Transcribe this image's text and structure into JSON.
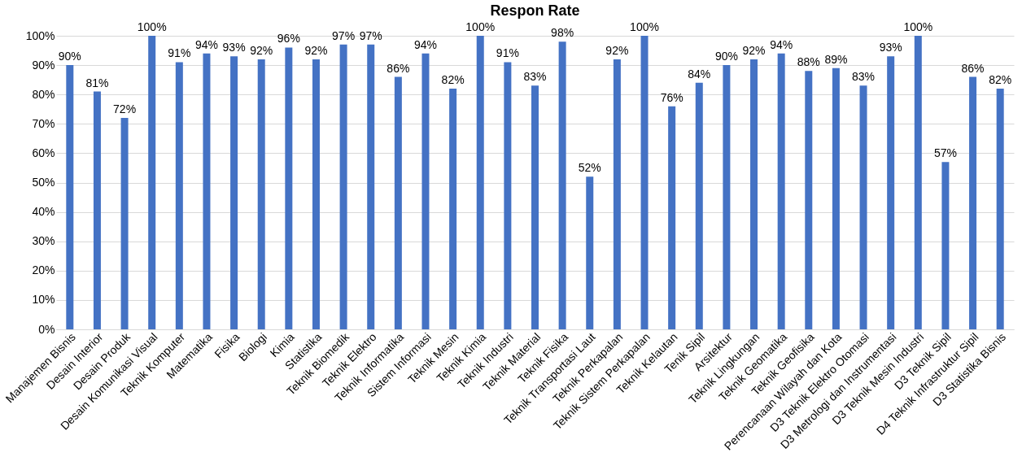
{
  "chart_data": {
    "type": "bar",
    "title": "Respon Rate",
    "categories": [
      "Manajemen Bisnis",
      "Desain Interior",
      "Desain Produk",
      "Desain Komunikasi Visual",
      "Teknik Komputer",
      "Matematika",
      "Fisika",
      "Biologi",
      "Kimia",
      "Statistika",
      "Teknik Biomedik",
      "Teknik Elektro",
      "Teknik Informatika",
      "Sistem Informasi",
      "Teknik Mesin",
      "Teknik Kimia",
      "Teknik Industri",
      "Teknik Material",
      "Teknik Fisika",
      "Teknik Transportasi Laut",
      "Teknik Perkapalan",
      "Teknik Sistem Perkapalan",
      "Teknik Kelautan",
      "Tenik Sipil",
      "Arsitektur",
      "Teknik Lingkungan",
      "Teknik Geomatika",
      "Teknik Geofisika",
      "Perencanaan Wilayah dan Kota",
      "D3 Teknik Elektro Otomasi",
      "D3 Metrologi dan Instrumentasi",
      "D3 Teknik Mesin Industri",
      "D3 Teknik Sipil",
      "D4 Teknik Infrastruktur Sipil",
      "D3 Statistika Bisnis"
    ],
    "values": [
      90,
      81,
      72,
      100,
      91,
      94,
      93,
      92,
      96,
      92,
      97,
      97,
      86,
      94,
      82,
      100,
      91,
      83,
      98,
      52,
      92,
      100,
      76,
      84,
      90,
      92,
      94,
      88,
      89,
      83,
      93,
      100,
      57,
      86,
      82
    ],
    "value_labels": [
      "90%",
      "81%",
      "72%",
      "100%",
      "91%",
      "94%",
      "93%",
      "92%",
      "96%",
      "92%",
      "97%",
      "97%",
      "86%",
      "94%",
      "82%",
      "100%",
      "91%",
      "83%",
      "98%",
      "52%",
      "92%",
      "100%",
      "76%",
      "84%",
      "90%",
      "92%",
      "94%",
      "88%",
      "89%",
      "83%",
      "93%",
      "100%",
      "57%",
      "86%",
      "82%"
    ],
    "color": "#4472c4",
    "ylim": [
      0,
      100
    ],
    "yticks": [
      {
        "value": 0,
        "label": "0%"
      },
      {
        "value": 10,
        "label": "10%"
      },
      {
        "value": 20,
        "label": "20%"
      },
      {
        "value": 30,
        "label": "30%"
      },
      {
        "value": 40,
        "label": "40%"
      },
      {
        "value": 50,
        "label": "50%"
      },
      {
        "value": 60,
        "label": "60%"
      },
      {
        "value": 70,
        "label": "70%"
      },
      {
        "value": 80,
        "label": "80%"
      },
      {
        "value": 90,
        "label": "90%"
      },
      {
        "value": 100,
        "label": "100%"
      }
    ],
    "grid": "y"
  }
}
